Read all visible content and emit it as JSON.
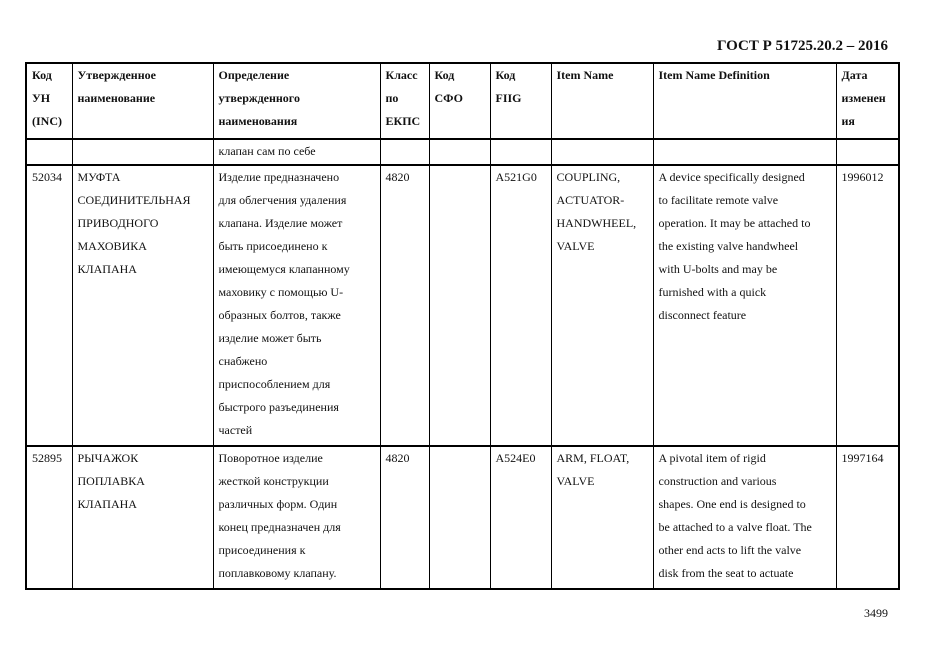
{
  "document": {
    "standard": "ГОСТ Р 51725.20.2 – 2016",
    "page_number": "3499"
  },
  "table": {
    "headers": [
      "Код\nУН\n(INC)",
      "Утвержденное\nнаименование",
      "Определение\nутвержденного\nнаименования",
      "Класс\nпо\nЕКПС",
      "Код\nСФО",
      "Код\nFIIG",
      "Item Name",
      "Item Name Definition",
      "Дата\nизменен\nия"
    ],
    "rows": [
      [
        "",
        "",
        "клапан сам по себе",
        "",
        "",
        "",
        "",
        "",
        ""
      ],
      [
        "52034",
        "МУФТА\nСОЕДИНИТЕЛЬНАЯ\nПРИВОДНОГО\nМАХОВИКА\nКЛАПАНА",
        "Изделие предназначено\nдля облегчения удаления\nклапана. Изделие может\nбыть присоединено к\nимеющемуся клапанному\nмаховику с помощью U-\nобразных болтов, также\nизделие может быть\nснабжено\nприспособлением для\nбыстрого разъединения\nчастей",
        "4820",
        "",
        "A521G0",
        "COUPLING,\nACTUATOR-\nHANDWHEEL,\nVALVE",
        "A device specifically designed\nto facilitate remote valve\noperation. It may be attached to\nthe existing valve handwheel\nwith U-bolts and may be\nfurnished with a quick\ndisconnect feature",
        "1996012"
      ],
      [
        "52895",
        "РЫЧАЖОК\nПОПЛАВКА\nКЛАПАНА",
        "Поворотное изделие\nжесткой конструкции\nразличных форм. Один\nконец предназначен для\nприсоединения к\nпоплавковому клапану.",
        "4820",
        "",
        "A524E0",
        "ARM, FLOAT,\nVALVE",
        "A pivotal item of rigid\nconstruction and various\nshapes. One end is designed to\nbe attached to a valve float. The\nother end acts to lift the valve\ndisk from the seat to actuate",
        "1997164"
      ]
    ]
  }
}
